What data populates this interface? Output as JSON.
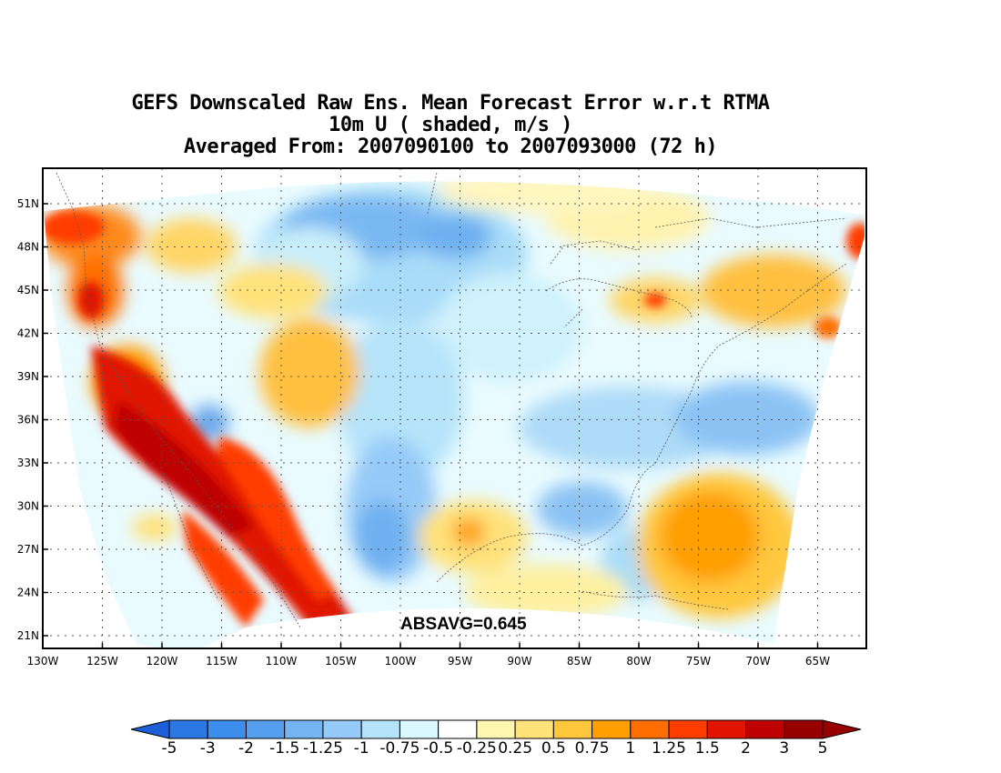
{
  "title": {
    "line1": "GEFS Downscaled Raw Ens. Mean Forecast Error w.r.t RTMA",
    "line2": "10m U ( shaded, m/s )",
    "line3": "Averaged From: 2007090100 to 2007093000 (72 h)"
  },
  "annotation": "ABSAVG=0.645",
  "chart_data": {
    "type": "heatmap",
    "variable": "10m U",
    "units": "m/s",
    "lon_range": [
      -130,
      -60
    ],
    "lat_range": [
      20,
      53
    ],
    "x_ticks": [
      "130W",
      "125W",
      "120W",
      "115W",
      "110W",
      "105W",
      "100W",
      "95W",
      "90W",
      "85W",
      "80W",
      "75W",
      "70W",
      "65W"
    ],
    "y_ticks": [
      "51N",
      "48N",
      "45N",
      "42N",
      "39N",
      "36N",
      "33N",
      "30N",
      "27N",
      "24N",
      "21N"
    ],
    "grid": true,
    "absavg": 0.645,
    "colorbar": {
      "labels": [
        "-5",
        "-3",
        "-2",
        "-1.5",
        "-1.25",
        "-1",
        "-0.75",
        "-0.5",
        "-0.25",
        "0.25",
        "0.5",
        "0.75",
        "1",
        "1.25",
        "1.5",
        "2",
        "3",
        "5"
      ],
      "colors": [
        "#1e5fd9",
        "#2b78e4",
        "#3d8ded",
        "#559fee",
        "#75b4f3",
        "#96caf8",
        "#b5e3fa",
        "#dbf7ff",
        "#ffffff",
        "#fff6b0",
        "#ffe27a",
        "#ffc83c",
        "#ff9f00",
        "#ff6e00",
        "#ff3c00",
        "#e01400",
        "#be0000",
        "#980000",
        "#1e5fd9"
      ]
    },
    "regions": [
      {
        "name": "pacific-northwest-coast",
        "sign": "positive",
        "level": 1.5
      },
      {
        "name": "california-coast",
        "sign": "positive",
        "level": 3
      },
      {
        "name": "baja-california",
        "sign": "positive",
        "level": 3
      },
      {
        "name": "arizona-new-mexico",
        "sign": "positive",
        "level": 1.5
      },
      {
        "name": "great-basin",
        "sign": "positive",
        "level": 0.75
      },
      {
        "name": "northern-great-plains",
        "sign": "negative",
        "level": -0.75
      },
      {
        "name": "central-plains",
        "sign": "negative",
        "level": -0.5
      },
      {
        "name": "texas",
        "sign": "negative",
        "level": -0.75
      },
      {
        "name": "gulf-of-mexico",
        "sign": "positive",
        "level": 0.5
      },
      {
        "name": "great-lakes",
        "sign": "positive",
        "level": 0.75
      },
      {
        "name": "new-england",
        "sign": "positive",
        "level": 1
      },
      {
        "name": "mid-atlantic",
        "sign": "negative",
        "level": -0.75
      },
      {
        "name": "western-atlantic",
        "sign": "positive",
        "level": 1.25
      },
      {
        "name": "southeast-us",
        "sign": "negative",
        "level": -0.5
      }
    ]
  }
}
